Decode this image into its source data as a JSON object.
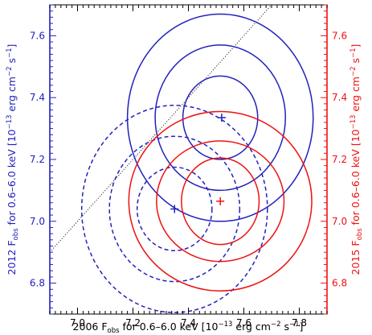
{
  "chart_data": {
    "type": "scatter",
    "title": "",
    "xlabel": {
      "prefix": "2006 F",
      "sub": "obs",
      "mid": " for 0.6–6.0 keV [10",
      "sup1": "−13",
      "mid2": " erg cm",
      "sup2": "−2",
      "mid3": " s",
      "sup3": "−1",
      "suffix": "]"
    },
    "ylabel_left": {
      "prefix": "2012 F",
      "sub": "obs",
      "mid": " for 0.6–6.0 keV [10",
      "sup1": "−13",
      "mid2": " erg cm",
      "sup2": "−2",
      "mid3": " s",
      "sup3": "−1",
      "suffix": "]"
    },
    "ylabel_right": {
      "prefix": "2015 F",
      "sub": "obs",
      "mid": " for 0.6–6.0 keV [10",
      "sup1": "−13",
      "mid2": " erg cm",
      "sup2": "−2",
      "mid3": " s",
      "sup3": "−1",
      "suffix": "]"
    },
    "xlim": [
      6.9,
      7.9
    ],
    "ylim": [
      6.7,
      7.7
    ],
    "x_ticks": [
      "7.0",
      "7.2",
      "7.4",
      "7.6",
      "7.8"
    ],
    "y_ticks": [
      "6.8",
      "7.0",
      "7.2",
      "7.4",
      "7.6"
    ],
    "y_ticks_right": [
      "6.8",
      "7.0",
      "7.2",
      "7.4",
      "7.6"
    ],
    "grid": false,
    "colors": {
      "blue": "#2222bb",
      "red": "#ee1111",
      "black": "#000000"
    },
    "reference_line": {
      "points": [
        [
          6.9,
          6.9
        ],
        [
          7.9,
          7.9
        ]
      ],
      "style": "dotted"
    },
    "series": [
      {
        "color": "#2222bb",
        "style": "solid",
        "axis": "left",
        "marker": {
          "x": 7.52,
          "y": 7.335
        },
        "contours": [
          {
            "cx": 7.515,
            "cy": 7.335,
            "rx": 0.135,
            "ry": 0.135
          },
          {
            "cx": 7.515,
            "cy": 7.335,
            "rx": 0.235,
            "ry": 0.235
          },
          {
            "cx": 7.515,
            "cy": 7.335,
            "rx": 0.335,
            "ry": 0.335
          }
        ]
      },
      {
        "color": "#2222bb",
        "style": "dashed",
        "axis": "left",
        "marker": {
          "x": 7.35,
          "y": 7.04
        },
        "contours": [
          {
            "cx": 7.35,
            "cy": 7.04,
            "rx": 0.135,
            "ry": 0.135
          },
          {
            "cx": 7.35,
            "cy": 7.04,
            "rx": 0.235,
            "ry": 0.235
          },
          {
            "cx": 7.35,
            "cy": 7.04,
            "rx": 0.335,
            "ry": 0.335
          }
        ]
      },
      {
        "color": "#ee1111",
        "style": "solid",
        "axis": "right",
        "marker": {
          "x": 7.515,
          "y": 7.065
        },
        "contours": [
          {
            "cx": 7.515,
            "cy": 7.065,
            "rx": 0.14,
            "ry": 0.14
          },
          {
            "cx": 7.515,
            "cy": 7.065,
            "rx": 0.23,
            "ry": 0.195
          },
          {
            "cx": 7.515,
            "cy": 7.065,
            "rx": 0.33,
            "ry": 0.29
          }
        ]
      }
    ]
  }
}
